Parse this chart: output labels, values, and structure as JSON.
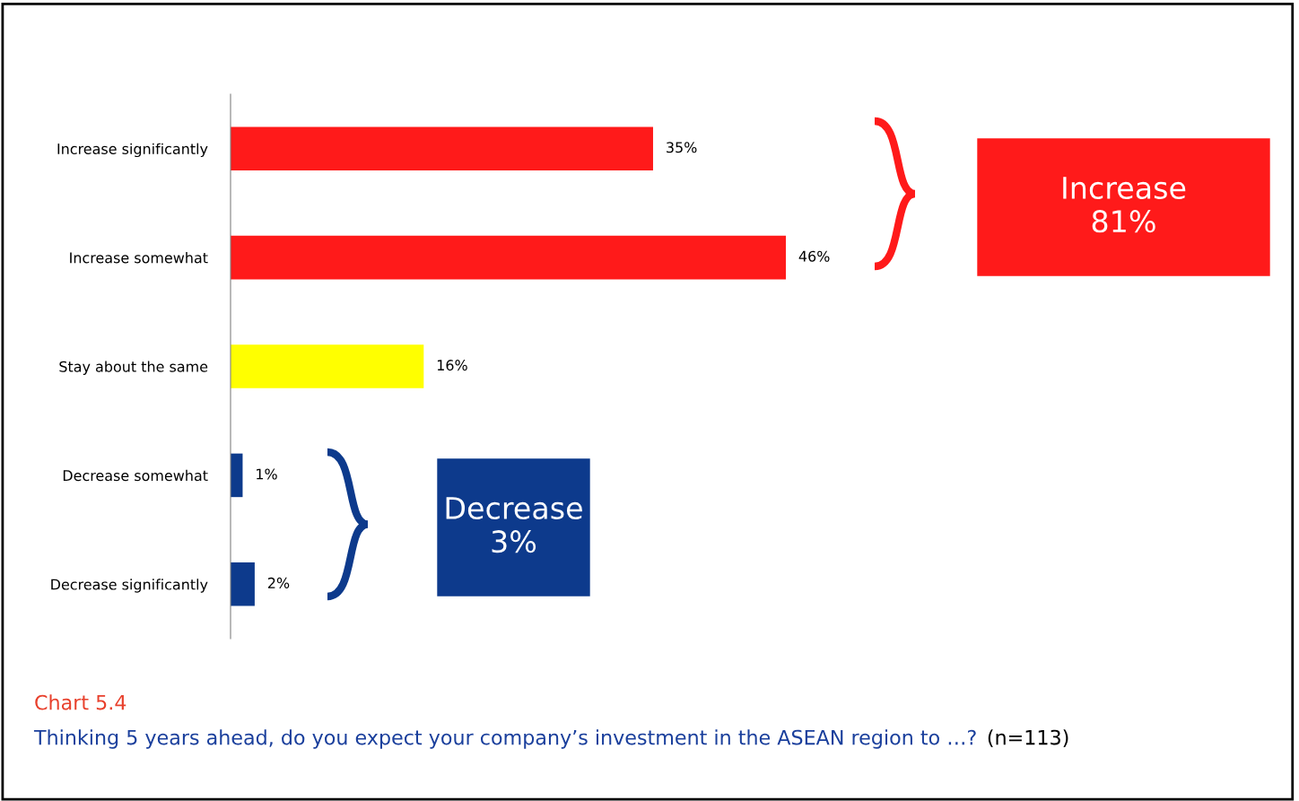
{
  "chart_data": {
    "type": "bar",
    "orientation": "horizontal",
    "categories": [
      "Increase significantly",
      "Increase somewhat",
      "Stay about the same",
      "Decrease somewhat",
      "Decrease significantly"
    ],
    "values": [
      35,
      46,
      16,
      1,
      2
    ],
    "colors": [
      "#ff1a1a",
      "#ff1a1a",
      "#ffff00",
      "#0d3a8c",
      "#0d3a8c"
    ],
    "value_labels": [
      "35%",
      "46%",
      "16%",
      "1%",
      "2%"
    ],
    "tick_labels": "y",
    "grid": false,
    "legend": false,
    "annotations": [
      "Increase\n81%",
      "Decrease\n3%",
      "Chart 5.4",
      "Thinking 5 years ahead, do you expect your company’s investment in the ASEAN region to …?",
      "(n=113)"
    ]
  }
}
